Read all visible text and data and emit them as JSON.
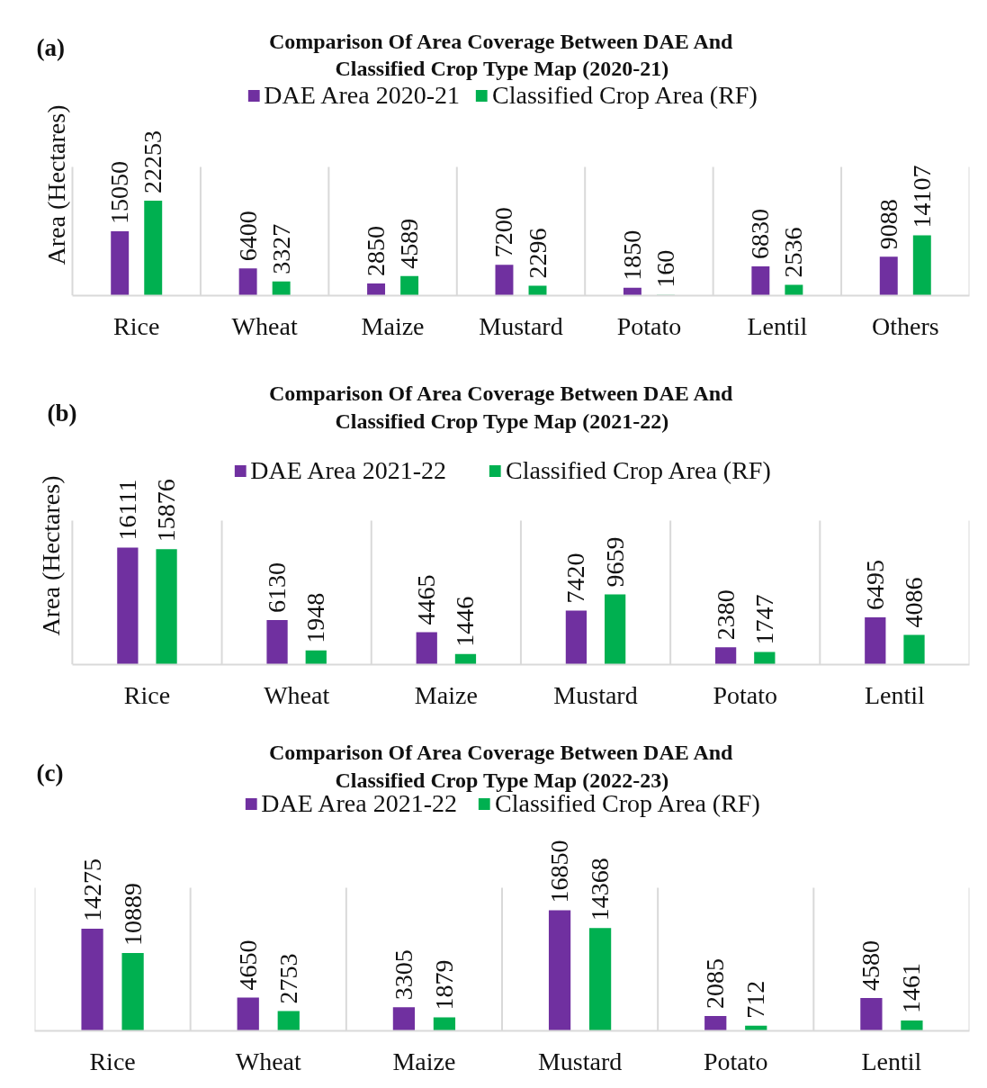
{
  "chart_data": [
    {
      "type": "bar",
      "title": "Comparison Of Area Coverage Between DAE And\nClassified Crop Type Map (2020-21)",
      "ylabel": "Area (Hectares)",
      "annotations": [
        "(a)"
      ],
      "categories": [
        "Rice",
        "Wheat",
        "Maize",
        "Mustard",
        "Potato",
        "Lentil",
        "Others"
      ],
      "series": [
        {
          "name": "DAE Area 2020-21",
          "color": "#7030a0",
          "values": [
            15050,
            6400,
            2850,
            7200,
            1850,
            6830,
            9088
          ]
        },
        {
          "name": "Classified Crop Area (RF)",
          "color": "#00b050",
          "values": [
            22253,
            3327,
            4589,
            2296,
            160,
            2536,
            14107
          ]
        }
      ],
      "data_labels": true,
      "grid": "x",
      "legend": "top"
    },
    {
      "type": "bar",
      "title": "Comparison Of Area Coverage Between DAE And\nClassified Crop Type Map (2021-22)",
      "ylabel": "Area (Hectares)",
      "annotations": [
        "(b)"
      ],
      "categories": [
        "Rice",
        "Wheat",
        "Maize",
        "Mustard",
        "Potato",
        "Lentil"
      ],
      "series": [
        {
          "name": "DAE Area 2021-22",
          "color": "#7030a0",
          "values": [
            16111,
            6130,
            4465,
            7420,
            2380,
            6495
          ]
        },
        {
          "name": "Classified Crop Area (RF)",
          "color": "#00b050",
          "values": [
            15876,
            1948,
            1446,
            9659,
            1747,
            4086
          ]
        }
      ],
      "data_labels": true,
      "grid": "x",
      "legend": "top"
    },
    {
      "type": "bar",
      "title": "Comparison Of Area Coverage Between DAE And\nClassified Crop Type Map (2022-23)",
      "annotations": [
        "(c)"
      ],
      "categories": [
        "Rice",
        "Wheat",
        "Maize",
        "Mustard",
        "Potato",
        "Lentil"
      ],
      "series": [
        {
          "name": "DAE Area 2021-22",
          "color": "#7030a0",
          "values": [
            14275,
            4650,
            3305,
            16850,
            2085,
            4580
          ]
        },
        {
          "name": "Classified Crop Area (RF)",
          "color": "#00b050",
          "values": [
            10889,
            2753,
            1879,
            14368,
            712,
            1461
          ]
        }
      ],
      "data_labels": true,
      "grid": "x",
      "legend": "top"
    }
  ]
}
